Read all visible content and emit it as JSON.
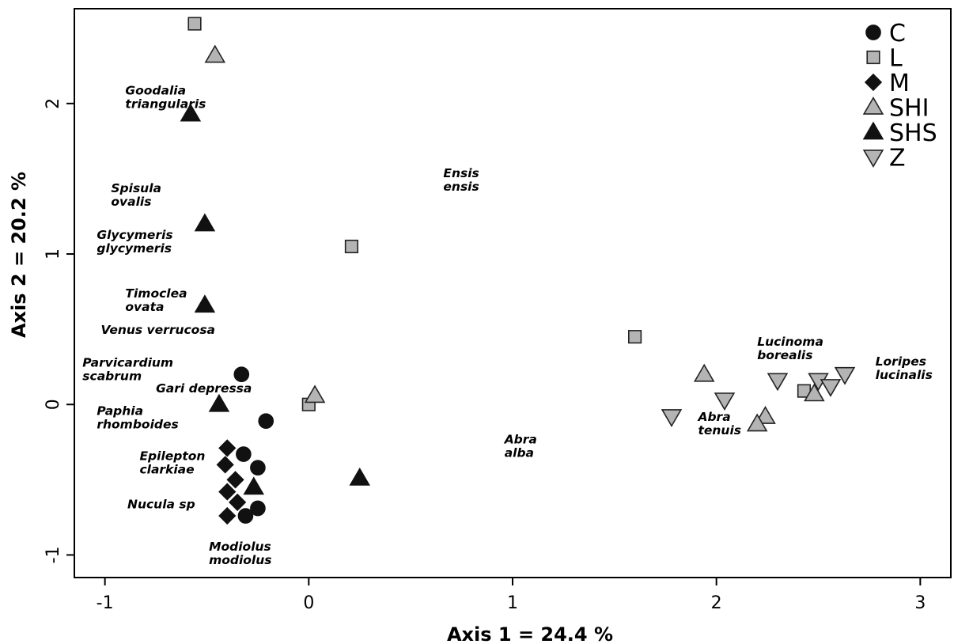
{
  "chart_data": {
    "type": "scatter",
    "xlabel": "Axis 1 = 24.4 %",
    "ylabel": "Axis 2 = 20.2 %",
    "xlim": [
      -1.15,
      3.15
    ],
    "ylim": [
      -1.15,
      2.63
    ],
    "x_ticks": [
      "-1",
      "0",
      "1",
      "2",
      "3"
    ],
    "y_ticks": [
      "-1",
      "0",
      "1",
      "2"
    ],
    "grid": false,
    "legend_position": "top-right",
    "colors": {
      "black": "#111111",
      "grey": "#b4b4b4",
      "outline": "#222222"
    },
    "series": [
      {
        "name": "C",
        "marker": "circle",
        "points": [
          {
            "x": -0.33,
            "y": 0.2
          },
          {
            "x": -0.21,
            "y": -0.11
          },
          {
            "x": -0.32,
            "y": -0.33
          },
          {
            "x": -0.25,
            "y": -0.42
          },
          {
            "x": -0.25,
            "y": -0.69
          },
          {
            "x": -0.31,
            "y": -0.74
          }
        ]
      },
      {
        "name": "L",
        "marker": "square",
        "points": [
          {
            "x": -0.56,
            "y": 2.53
          },
          {
            "x": 0.21,
            "y": 1.05
          },
          {
            "x": 1.6,
            "y": 0.45
          },
          {
            "x": 0.0,
            "y": 0.0
          },
          {
            "x": 2.43,
            "y": 0.09
          }
        ]
      },
      {
        "name": "M",
        "marker": "diamond",
        "points": [
          {
            "x": -0.4,
            "y": -0.29
          },
          {
            "x": -0.41,
            "y": -0.4
          },
          {
            "x": -0.36,
            "y": -0.5
          },
          {
            "x": -0.4,
            "y": -0.58
          },
          {
            "x": -0.35,
            "y": -0.65
          },
          {
            "x": -0.4,
            "y": -0.74
          }
        ]
      },
      {
        "name": "SHI",
        "marker": "triangle-up",
        "points": [
          {
            "x": -0.46,
            "y": 2.32
          },
          {
            "x": 0.03,
            "y": 0.06
          },
          {
            "x": 1.94,
            "y": 0.2
          },
          {
            "x": 2.48,
            "y": 0.07
          },
          {
            "x": 2.24,
            "y": -0.08
          },
          {
            "x": 2.2,
            "y": -0.13
          }
        ]
      },
      {
        "name": "SHS",
        "marker": "triangle-up",
        "points": [
          {
            "x": -0.58,
            "y": 1.93
          },
          {
            "x": -0.51,
            "y": 1.2
          },
          {
            "x": -0.51,
            "y": 0.66
          },
          {
            "x": -0.44,
            "y": 0.0
          },
          {
            "x": -0.27,
            "y": -0.55
          },
          {
            "x": 0.25,
            "y": -0.49
          }
        ]
      },
      {
        "name": "Z",
        "marker": "triangle-down",
        "points": [
          {
            "x": 1.78,
            "y": -0.08
          },
          {
            "x": 2.04,
            "y": 0.03
          },
          {
            "x": 2.3,
            "y": 0.16
          },
          {
            "x": 2.5,
            "y": 0.16
          },
          {
            "x": 2.56,
            "y": 0.12
          },
          {
            "x": 2.63,
            "y": 0.2
          }
        ]
      }
    ],
    "annotations": [
      {
        "lines": [
          "Goodalia",
          "triangularis"
        ],
        "x": -0.9,
        "y": 2.06
      },
      {
        "lines": [
          "Spisula",
          "ovalis"
        ],
        "x": -0.97,
        "y": 1.41
      },
      {
        "lines": [
          "Glycymeris",
          "glycymeris"
        ],
        "x": -1.04,
        "y": 1.1
      },
      {
        "lines": [
          "Timoclea",
          "ovata"
        ],
        "x": -0.9,
        "y": 0.71
      },
      {
        "lines": [
          "Venus verrucosa"
        ],
        "x": -1.02,
        "y": 0.47
      },
      {
        "lines": [
          "Parvicardium",
          "scabrum"
        ],
        "x": -1.11,
        "y": 0.25
      },
      {
        "lines": [
          "Gari depressa"
        ],
        "x": -0.75,
        "y": 0.08
      },
      {
        "lines": [
          "Paphia",
          "rhomboides"
        ],
        "x": -1.04,
        "y": -0.07
      },
      {
        "lines": [
          "Epilepton",
          "clarkiae"
        ],
        "x": -0.83,
        "y": -0.37
      },
      {
        "lines": [
          "Nucula sp"
        ],
        "x": -0.89,
        "y": -0.69
      },
      {
        "lines": [
          "Modiolus",
          "modiolus"
        ],
        "x": -0.49,
        "y": -0.97
      },
      {
        "lines": [
          "Ensis",
          "ensis"
        ],
        "x": 0.66,
        "y": 1.51
      },
      {
        "lines": [
          "Abra",
          "alba"
        ],
        "x": 0.96,
        "y": -0.26
      },
      {
        "lines": [
          "Abra",
          "tenuis"
        ],
        "x": 1.91,
        "y": -0.11
      },
      {
        "lines": [
          "Lucinoma",
          "borealis"
        ],
        "x": 2.2,
        "y": 0.39
      },
      {
        "lines": [
          "Loripes",
          "lucinalis"
        ],
        "x": 2.78,
        "y": 0.26
      }
    ]
  }
}
